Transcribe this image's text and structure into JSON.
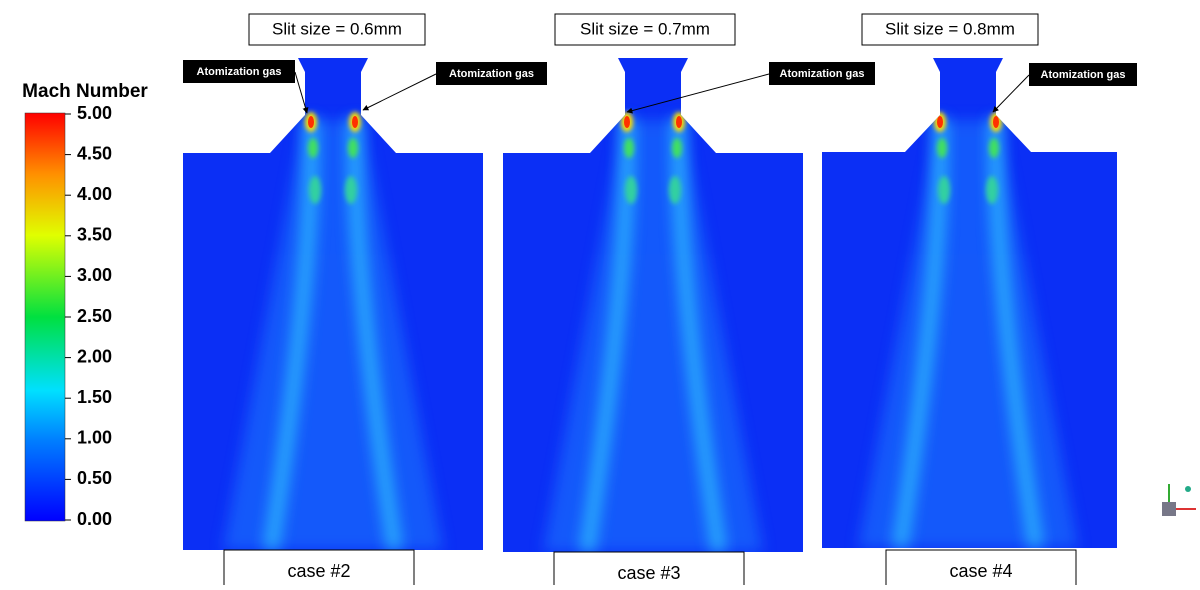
{
  "colorbar": {
    "title": "Mach Number",
    "ticks": [
      {
        "value": 5,
        "label": "5.00"
      },
      {
        "value": 4.5,
        "label": "4.50"
      },
      {
        "value": 4,
        "label": "4.00"
      },
      {
        "value": 3.5,
        "label": "3.50"
      },
      {
        "value": 3,
        "label": "3.00"
      },
      {
        "value": 2.5,
        "label": "2.50"
      },
      {
        "value": 2,
        "label": "2.00"
      },
      {
        "value": 1.5,
        "label": "1.50"
      },
      {
        "value": 1,
        "label": "1.00"
      },
      {
        "value": 0.5,
        "label": "0.50"
      },
      {
        "value": 0,
        "label": "0.00"
      }
    ]
  },
  "panels": [
    {
      "slit": "Slit size = 0.6mm",
      "case": "case #2"
    },
    {
      "slit": "Slit size = 0.7mm",
      "case": "case #3"
    },
    {
      "slit": "Slit size = 0.8mm",
      "case": "case #4"
    }
  ],
  "annotations": [
    "Atomization gas",
    "Atomization gas",
    "Atomization gas",
    "Atomization gas"
  ]
}
